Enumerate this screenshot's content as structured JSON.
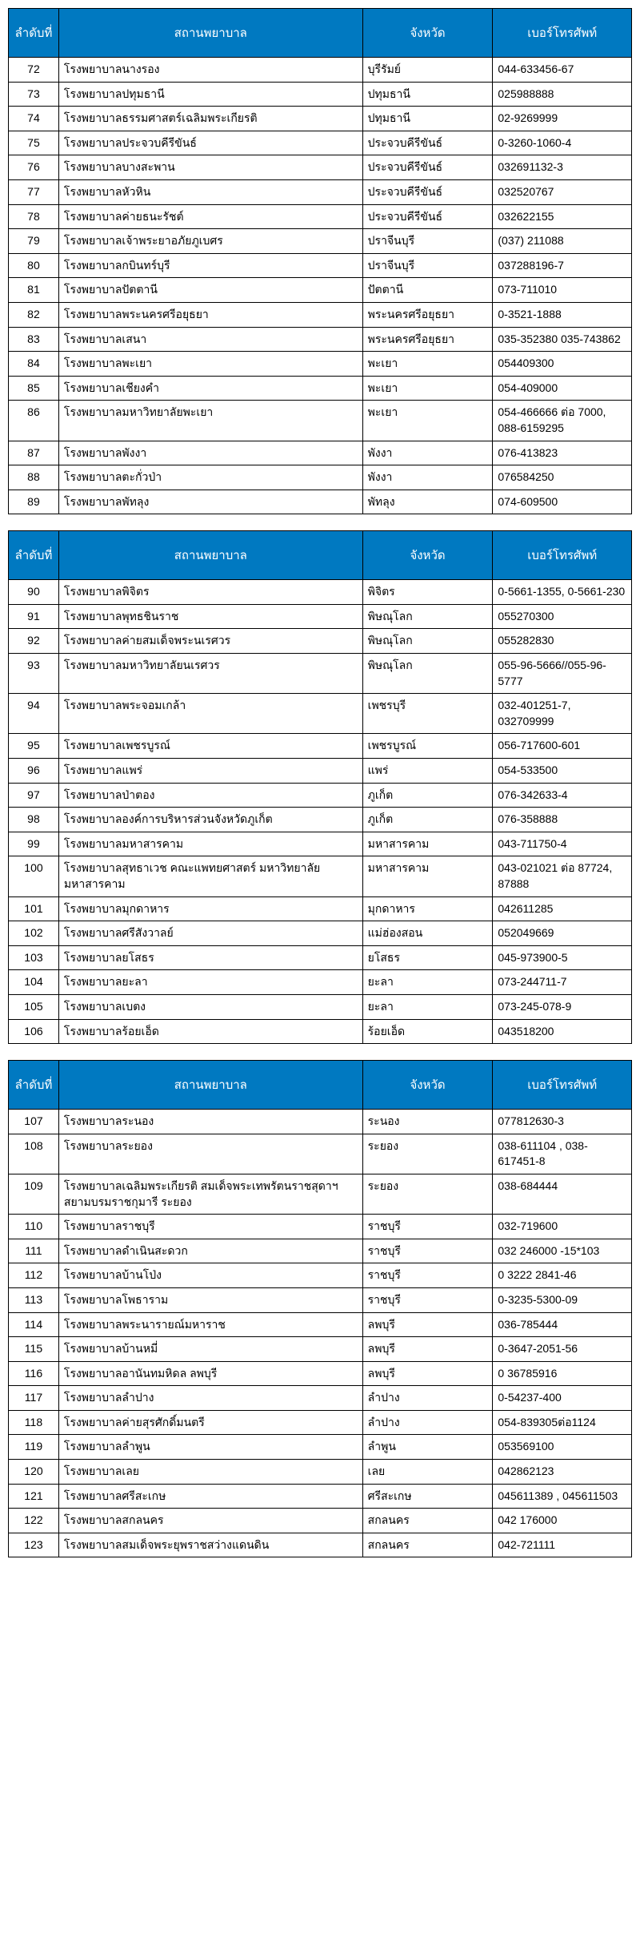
{
  "header_bg": "#0079c1",
  "header_fg": "#ffffff",
  "border_color": "#000000",
  "headers": {
    "no": "ลำดับที่",
    "hospital": "สถานพยาบาล",
    "province": "จังหวัด",
    "phone": "เบอร์โทรศัพท์"
  },
  "tables": [
    {
      "rows": [
        {
          "no": "72",
          "hospital": "โรงพยาบาลนางรอง",
          "province": "บุรีรัมย์",
          "phone": "044-633456-67"
        },
        {
          "no": "73",
          "hospital": "โรงพยาบาลปทุมธานี",
          "province": "ปทุมธานี",
          "phone": "025988888"
        },
        {
          "no": "74",
          "hospital": "โรงพยาบาลธรรมศาสตร์เฉลิมพระเกียรติ",
          "province": "ปทุมธานี",
          "phone": "02-9269999"
        },
        {
          "no": "75",
          "hospital": "โรงพยาบาลประจวบคีรีขันธ์",
          "province": "ประจวบคีรีขันธ์",
          "phone": "0-3260-1060-4"
        },
        {
          "no": "76",
          "hospital": "โรงพยาบาลบางสะพาน",
          "province": "ประจวบคีรีขันธ์",
          "phone": "032691132-3"
        },
        {
          "no": "77",
          "hospital": "โรงพยาบาลหัวหิน",
          "province": "ประจวบคีรีขันธ์",
          "phone": "032520767"
        },
        {
          "no": "78",
          "hospital": "โรงพยาบาลค่ายธนะรัชต์",
          "province": "ประจวบคีรีขันธ์",
          "phone": "032622155"
        },
        {
          "no": "79",
          "hospital": "โรงพยาบาลเจ้าพระยาอภัยภูเบศร",
          "province": "ปราจีนบุรี",
          "phone": "(037) 211088"
        },
        {
          "no": "80",
          "hospital": "โรงพยาบาลกบินทร์บุรี",
          "province": "ปราจีนบุรี",
          "phone": "037288196-7"
        },
        {
          "no": "81",
          "hospital": "โรงพยาบาลปัตตานี",
          "province": "ปัตตานี",
          "phone": "073-711010"
        },
        {
          "no": "82",
          "hospital": "โรงพยาบาลพระนครศรีอยุธยา",
          "province": "พระนครศรีอยุธยา",
          "phone": "0-3521-1888"
        },
        {
          "no": "83",
          "hospital": "โรงพยาบาลเสนา",
          "province": "พระนครศรีอยุธยา",
          "phone": "035-352380   035-743862"
        },
        {
          "no": "84",
          "hospital": "โรงพยาบาลพะเยา",
          "province": "พะเยา",
          "phone": "054409300"
        },
        {
          "no": "85",
          "hospital": "โรงพยาบาลเชียงคำ",
          "province": "พะเยา",
          "phone": "054-409000"
        },
        {
          "no": "86",
          "hospital": "โรงพยาบาลมหาวิทยาลัยพะเยา",
          "province": "พะเยา",
          "phone": "054-466666 ต่อ 7000, 088-6159295"
        },
        {
          "no": "87",
          "hospital": "โรงพยาบาลพังงา",
          "province": "พังงา",
          "phone": "076-413823"
        },
        {
          "no": "88",
          "hospital": "โรงพยาบาลตะกั่วป่า",
          "province": "พังงา",
          "phone": "076584250"
        },
        {
          "no": "89",
          "hospital": "โรงพยาบาลพัทลุง",
          "province": "พัทลุง",
          "phone": "074-609500"
        }
      ]
    },
    {
      "rows": [
        {
          "no": "90",
          "hospital": "โรงพยาบาลพิจิตร",
          "province": "พิจิตร",
          "phone": "0-5661-1355, 0-5661-230"
        },
        {
          "no": "91",
          "hospital": "โรงพยาบาลพุทธชินราช",
          "province": "พิษณุโลก",
          "phone": "055270300"
        },
        {
          "no": "92",
          "hospital": "โรงพยาบาลค่ายสมเด็จพระนเรศวร",
          "province": "พิษณุโลก",
          "phone": "055282830"
        },
        {
          "no": "93",
          "hospital": "โรงพยาบาลมหาวิทยาลัยนเรศวร",
          "province": "พิษณุโลก",
          "phone": "055-96-5666//055-96-5777"
        },
        {
          "no": "94",
          "hospital": "โรงพยาบาลพระจอมเกล้า",
          "province": "เพชรบุรี",
          "phone": "032-401251-7, 032709999"
        },
        {
          "no": "95",
          "hospital": "โรงพยาบาลเพชรบูรณ์",
          "province": "เพชรบูรณ์",
          "phone": "056-717600-601"
        },
        {
          "no": "96",
          "hospital": "โรงพยาบาลแพร่",
          "province": "แพร่",
          "phone": "054-533500"
        },
        {
          "no": "97",
          "hospital": "โรงพยาบาลป่าตอง",
          "province": "ภูเก็ต",
          "phone": "076-342633-4"
        },
        {
          "no": "98",
          "hospital": "โรงพยาบาลองค์การบริหารส่วนจังหวัดภูเก็ต",
          "province": "ภูเก็ต",
          "phone": "076-358888"
        },
        {
          "no": "99",
          "hospital": "โรงพยาบาลมหาสารคาม",
          "province": "มหาสารคาม",
          "phone": "043-711750-4"
        },
        {
          "no": "100",
          "hospital": "โรงพยาบาลสุทธาเวช คณะแพทยศาสตร์ มหาวิทยาลัยมหาสารคาม",
          "province": "มหาสารคาม",
          "phone": "043-021021 ต่อ 87724, 87888"
        },
        {
          "no": "101",
          "hospital": "โรงพยาบาลมุกดาหาร",
          "province": "มุกดาหาร",
          "phone": "042611285"
        },
        {
          "no": "102",
          "hospital": "โรงพยาบาลศรีสังวาลย์",
          "province": "แม่ฮ่องสอน",
          "phone": "052049669"
        },
        {
          "no": "103",
          "hospital": "โรงพยาบาลยโสธร",
          "province": "ยโสธร",
          "phone": "045-973900-5"
        },
        {
          "no": "104",
          "hospital": "โรงพยาบาลยะลา",
          "province": "ยะลา",
          "phone": "073-244711-7"
        },
        {
          "no": "105",
          "hospital": "โรงพยาบาลเบตง",
          "province": "ยะลา",
          "phone": "073-245-078-9"
        },
        {
          "no": "106",
          "hospital": "โรงพยาบาลร้อยเอ็ด",
          "province": "ร้อยเอ็ด",
          "phone": "043518200"
        }
      ]
    },
    {
      "rows": [
        {
          "no": "107",
          "hospital": "โรงพยาบาลระนอง",
          "province": "ระนอง",
          "phone": "077812630-3"
        },
        {
          "no": "108",
          "hospital": "โรงพยาบาลระยอง",
          "province": "ระยอง",
          "phone": "038-611104 , 038-617451-8"
        },
        {
          "no": "109",
          "hospital": "โรงพยาบาลเฉลิมพระเกียรติ สมเด็จพระเทพรัตนราชสุดาฯ สยามบรมราชกุมารี ระยอง",
          "province": "ระยอง",
          "phone": "038-684444"
        },
        {
          "no": "110",
          "hospital": "โรงพยาบาลราชบุรี",
          "province": "ราชบุรี",
          "phone": "032-719600"
        },
        {
          "no": "111",
          "hospital": "โรงพยาบาลดำเนินสะดวก",
          "province": "ราชบุรี",
          "phone": "032 246000 -15*103"
        },
        {
          "no": "112",
          "hospital": "โรงพยาบาลบ้านโป่ง",
          "province": "ราชบุรี",
          "phone": "0 3222  2841-46"
        },
        {
          "no": "113",
          "hospital": "โรงพยาบาลโพธาราม",
          "province": "ราชบุรี",
          "phone": "0-3235-5300-09"
        },
        {
          "no": "114",
          "hospital": "โรงพยาบาลพระนารายณ์มหาราช",
          "province": "ลพบุรี",
          "phone": "036-785444"
        },
        {
          "no": "115",
          "hospital": "โรงพยาบาลบ้านหมี่",
          "province": "ลพบุรี",
          "phone": "0-3647-2051-56"
        },
        {
          "no": "116",
          "hospital": "โรงพยาบาลอานันทมหิดล ลพบุรี",
          "province": "ลพบุรี",
          "phone": "0 36785916"
        },
        {
          "no": "117",
          "hospital": "โรงพยาบาลลำปาง",
          "province": "ลำปาง",
          "phone": "0-54237-400"
        },
        {
          "no": "118",
          "hospital": "โรงพยาบาลค่ายสุรศักดิ์มนตรี",
          "province": "ลำปาง",
          "phone": "054-839305ต่อ1124"
        },
        {
          "no": "119",
          "hospital": "โรงพยาบาลลำพูน",
          "province": "ลำพูน",
          "phone": "053569100"
        },
        {
          "no": "120",
          "hospital": "โรงพยาบาลเลย",
          "province": "เลย",
          "phone": "042862123"
        },
        {
          "no": "121",
          "hospital": "โรงพยาบาลศรีสะเกษ",
          "province": "ศรีสะเกษ",
          "phone": "045611389 , 045611503"
        },
        {
          "no": "122",
          "hospital": "โรงพยาบาลสกลนคร",
          "province": "สกลนคร",
          "phone": "042 176000"
        },
        {
          "no": "123",
          "hospital": "โรงพยาบาลสมเด็จพระยุพราชสว่างแดนดิน",
          "province": "สกลนคร",
          "phone": "042-721111"
        }
      ]
    }
  ]
}
